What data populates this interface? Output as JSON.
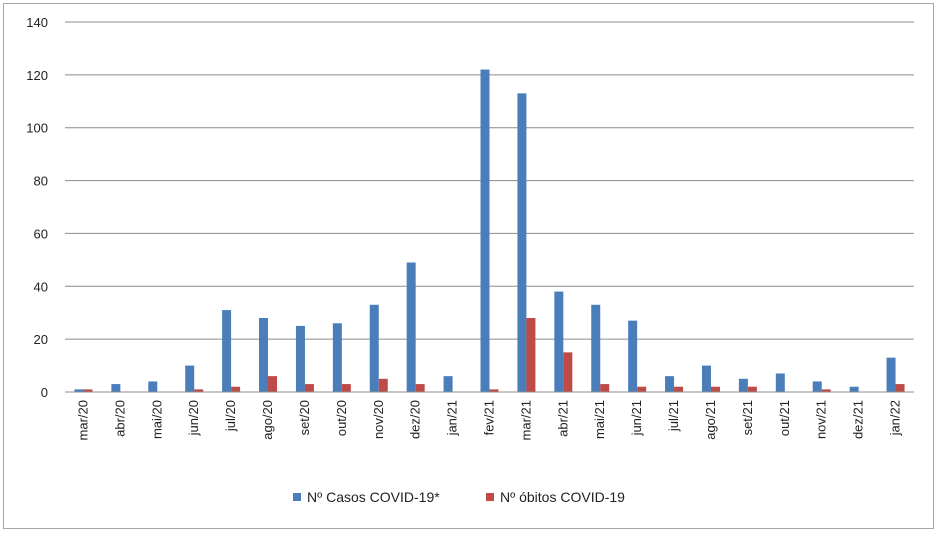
{
  "chart_data": {
    "type": "bar",
    "title": "",
    "xlabel": "",
    "ylabel": "",
    "ylim": [
      0,
      140
    ],
    "yticks": [
      "0",
      "20",
      "40",
      "60",
      "80",
      "100",
      "120",
      "140"
    ],
    "grid": true,
    "legend_position": "bottom",
    "categories": [
      "mar/20",
      "abr/20",
      "mai/20",
      "jun/20",
      "jul/20",
      "ago/20",
      "set/20",
      "out/20",
      "nov/20",
      "dez/20",
      "jan/21",
      "fev/21",
      "mar/21",
      "abr/21",
      "mai/21",
      "jun/21",
      "jul/21",
      "ago/21",
      "set/21",
      "out/21",
      "nov/21",
      "dez/21",
      "jan/22"
    ],
    "series": [
      {
        "name": "Nº Casos COVID-19*",
        "color": "#4a7ebb",
        "values": [
          1,
          3,
          4,
          10,
          31,
          28,
          25,
          26,
          33,
          49,
          6,
          122,
          113,
          38,
          33,
          27,
          6,
          10,
          5,
          7,
          4,
          2,
          13
        ]
      },
      {
        "name": "Nº óbitos COVID-19",
        "color": "#be4b48",
        "values": [
          1,
          0,
          0,
          1,
          2,
          6,
          3,
          3,
          5,
          3,
          0,
          1,
          28,
          15,
          3,
          2,
          2,
          2,
          2,
          0,
          1,
          0,
          3
        ]
      }
    ]
  }
}
